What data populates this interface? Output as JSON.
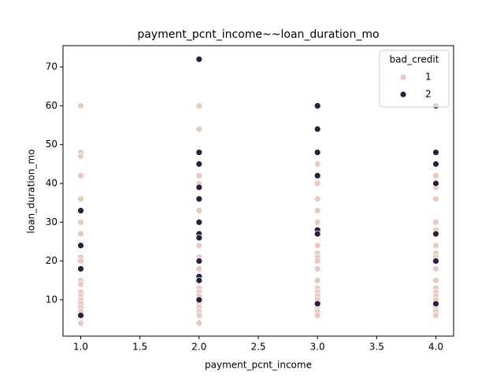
{
  "chart_data": {
    "type": "scatter",
    "title": "payment_pcnt_income~~loan_duration_mo",
    "x_label": "payment_pcnt_income",
    "y_label": "loan_duration_mo",
    "legend_title": "bad_credit",
    "legend": "upper right",
    "xlim": [
      0.85,
      4.15
    ],
    "ylim": [
      0.65,
      75.5
    ],
    "xticks": [
      {
        "value": 1,
        "label": "1.0"
      },
      {
        "value": 1.5,
        "label": "1.5"
      },
      {
        "value": 2,
        "label": "2.0"
      },
      {
        "value": 2.5,
        "label": "2.5"
      },
      {
        "value": 3,
        "label": "3.0"
      },
      {
        "value": 3.5,
        "label": "3.5"
      },
      {
        "value": 4,
        "label": "4.0"
      }
    ],
    "yticks": [
      10,
      20,
      30,
      40,
      50,
      60,
      70
    ],
    "series": [
      {
        "name": "1",
        "color": "#ebc9c0",
        "x": [
          1,
          1,
          1,
          1,
          1,
          1,
          1,
          1,
          1,
          1,
          1,
          1,
          1,
          1,
          1,
          1,
          1,
          1,
          1,
          2,
          2,
          2,
          2,
          2,
          2,
          2,
          2,
          2,
          2,
          2,
          2,
          2,
          2,
          2,
          2,
          2,
          2,
          2,
          2,
          2,
          2,
          2,
          3,
          3,
          3,
          3,
          3,
          3,
          3,
          3,
          3,
          3,
          3,
          3,
          3,
          3,
          3,
          3,
          3,
          3,
          3,
          3,
          3,
          3,
          4,
          4,
          4,
          4,
          4,
          4,
          4,
          4,
          4,
          4,
          4,
          4,
          4,
          4,
          4,
          4,
          4,
          4,
          4,
          4,
          4
        ],
        "values": [
          60,
          48,
          47,
          42,
          36,
          30,
          27,
          21,
          20,
          15,
          14,
          12,
          11,
          10,
          9,
          8,
          7,
          6,
          4,
          60,
          54,
          45,
          42,
          40,
          36,
          33,
          30,
          27,
          24,
          21,
          20,
          18,
          15,
          13,
          12,
          11,
          10,
          9,
          8,
          7,
          6,
          4,
          48,
          45,
          42,
          40,
          36,
          33,
          30,
          27,
          24,
          22,
          21,
          20,
          18,
          15,
          13,
          12,
          11,
          10,
          9,
          8,
          7,
          6,
          60,
          42,
          39,
          36,
          30,
          28,
          27,
          24,
          22,
          21,
          20,
          18,
          15,
          13,
          12,
          11,
          10,
          9,
          8,
          7,
          6
        ]
      },
      {
        "name": "2",
        "color": "#2d1e3e",
        "x": [
          1,
          1,
          1,
          1,
          2,
          2,
          2,
          2,
          2,
          2,
          2,
          2,
          2,
          2,
          2,
          2,
          3,
          3,
          3,
          3,
          3,
          3,
          3,
          4,
          4,
          4,
          4,
          4,
          4,
          4
        ],
        "values": [
          33,
          24,
          18,
          6,
          72,
          48,
          45,
          39,
          36,
          30,
          27,
          26,
          20,
          16,
          15,
          10,
          60,
          54,
          48,
          42,
          28,
          27,
          9,
          60,
          48,
          45,
          40,
          27,
          20,
          9
        ]
      }
    ]
  }
}
